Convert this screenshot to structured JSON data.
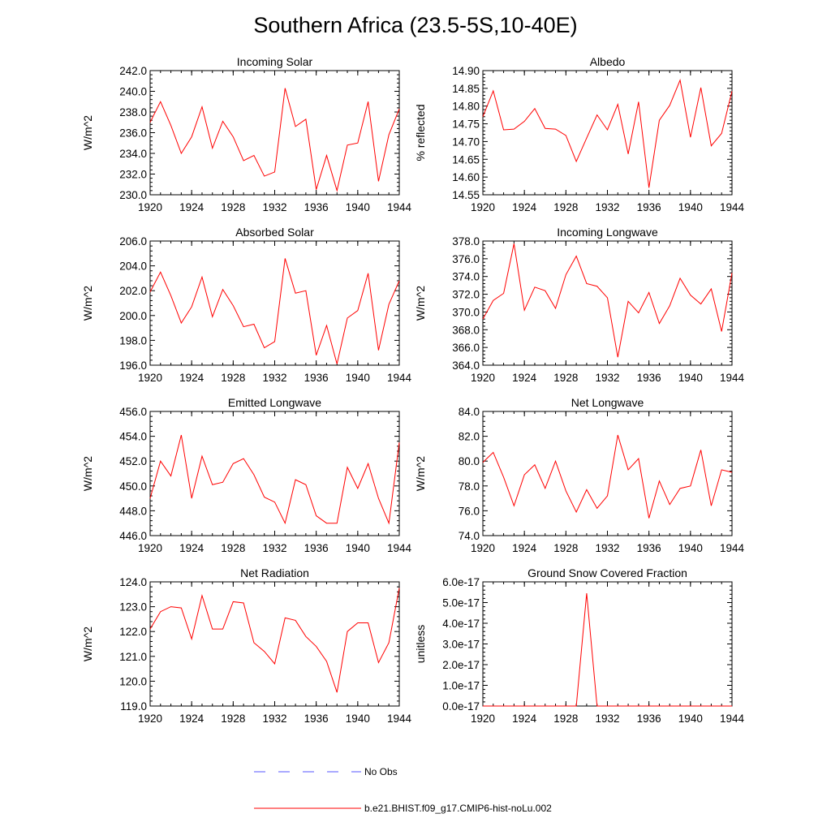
{
  "figure": {
    "title": "Southern Africa (23.5-5S,10-40E)"
  },
  "legend": {
    "entries": [
      {
        "label": "No Obs",
        "color": "#5555ff",
        "style": "dashed"
      },
      {
        "label": "b.e21.BHIST.f09_g17.CMIP6-hist-noLu.002",
        "color": "#ff0000",
        "style": "solid"
      }
    ]
  },
  "chart_data": [
    {
      "type": "line",
      "title": "Incoming Solar",
      "xlabel": "",
      "ylabel": "W/m^2",
      "xlim": [
        1920,
        1944
      ],
      "ylim": [
        230.0,
        242.0
      ],
      "xticks": [
        1920,
        1924,
        1928,
        1932,
        1936,
        1940,
        1944
      ],
      "yticks": [
        "230.0",
        "232.0",
        "234.0",
        "236.0",
        "238.0",
        "240.0",
        "242.0"
      ],
      "yticks_num": [
        230.0,
        232.0,
        234.0,
        236.0,
        238.0,
        240.0,
        242.0
      ],
      "x": [
        1920,
        1921,
        1922,
        1923,
        1924,
        1925,
        1926,
        1927,
        1928,
        1929,
        1930,
        1931,
        1932,
        1933,
        1934,
        1935,
        1936,
        1937,
        1938,
        1939,
        1940,
        1941,
        1942,
        1943,
        1944
      ],
      "series": [
        {
          "name": "b.e21.BHIST.f09_g17.CMIP6-hist-noLu.002",
          "color": "#ff0000",
          "values": [
            237.0,
            239.0,
            236.7,
            234.0,
            235.6,
            238.5,
            234.5,
            237.1,
            235.6,
            233.3,
            233.8,
            231.8,
            232.2,
            240.3,
            236.6,
            237.3,
            230.5,
            233.8,
            230.4,
            234.8,
            235.0,
            239.0,
            231.3,
            235.8,
            238.3
          ]
        }
      ]
    },
    {
      "type": "line",
      "title": "Albedo",
      "xlabel": "",
      "ylabel": "% reflected",
      "xlim": [
        1920,
        1944
      ],
      "ylim": [
        14.55,
        14.9
      ],
      "xticks": [
        1920,
        1924,
        1928,
        1932,
        1936,
        1940,
        1944
      ],
      "yticks": [
        "14.55",
        "14.60",
        "14.65",
        "14.70",
        "14.75",
        "14.80",
        "14.85",
        "14.90"
      ],
      "yticks_num": [
        14.55,
        14.6,
        14.65,
        14.7,
        14.75,
        14.8,
        14.85,
        14.9
      ],
      "x": [
        1920,
        1921,
        1922,
        1923,
        1924,
        1925,
        1926,
        1927,
        1928,
        1929,
        1930,
        1931,
        1932,
        1933,
        1934,
        1935,
        1936,
        1937,
        1938,
        1939,
        1940,
        1941,
        1942,
        1943,
        1944
      ],
      "series": [
        {
          "name": "b.e21.BHIST.f09_g17.CMIP6-hist-noLu.002",
          "color": "#ff0000",
          "values": [
            14.77,
            14.843,
            14.733,
            14.735,
            14.757,
            14.793,
            14.737,
            14.735,
            14.717,
            14.644,
            14.71,
            14.775,
            14.733,
            14.805,
            14.665,
            14.812,
            14.57,
            14.76,
            14.802,
            14.873,
            14.712,
            14.852,
            14.688,
            14.723,
            14.842
          ]
        }
      ]
    },
    {
      "type": "line",
      "title": "Absorbed Solar",
      "xlabel": "",
      "ylabel": "W/m^2",
      "xlim": [
        1920,
        1944
      ],
      "ylim": [
        196.0,
        206.0
      ],
      "xticks": [
        1920,
        1924,
        1928,
        1932,
        1936,
        1940,
        1944
      ],
      "yticks": [
        "196.0",
        "198.0",
        "200.0",
        "202.0",
        "204.0",
        "206.0"
      ],
      "yticks_num": [
        196.0,
        198.0,
        200.0,
        202.0,
        204.0,
        206.0
      ],
      "x": [
        1920,
        1921,
        1922,
        1923,
        1924,
        1925,
        1926,
        1927,
        1928,
        1929,
        1930,
        1931,
        1932,
        1933,
        1934,
        1935,
        1936,
        1937,
        1938,
        1939,
        1940,
        1941,
        1942,
        1943,
        1944
      ],
      "series": [
        {
          "name": "b.e21.BHIST.f09_g17.CMIP6-hist-noLu.002",
          "color": "#ff0000",
          "values": [
            201.9,
            203.5,
            201.6,
            199.4,
            200.7,
            203.1,
            199.9,
            202.1,
            200.8,
            199.1,
            199.3,
            197.4,
            197.9,
            204.6,
            201.8,
            202.0,
            196.8,
            199.2,
            196.1,
            199.8,
            200.4,
            203.4,
            197.2,
            200.9,
            202.8
          ]
        }
      ]
    },
    {
      "type": "line",
      "title": "Incoming Longwave",
      "xlabel": "",
      "ylabel": "W/m^2",
      "xlim": [
        1920,
        1944
      ],
      "ylim": [
        364.0,
        378.0
      ],
      "xticks": [
        1920,
        1924,
        1928,
        1932,
        1936,
        1940,
        1944
      ],
      "yticks": [
        "364.0",
        "366.0",
        "368.0",
        "370.0",
        "372.0",
        "374.0",
        "376.0",
        "378.0"
      ],
      "yticks_num": [
        364.0,
        366.0,
        368.0,
        370.0,
        372.0,
        374.0,
        376.0,
        378.0
      ],
      "x": [
        1920,
        1921,
        1922,
        1923,
        1924,
        1925,
        1926,
        1927,
        1928,
        1929,
        1930,
        1931,
        1932,
        1933,
        1934,
        1935,
        1936,
        1937,
        1938,
        1939,
        1940,
        1941,
        1942,
        1943,
        1944
      ],
      "series": [
        {
          "name": "b.e21.BHIST.f09_g17.CMIP6-hist-noLu.002",
          "color": "#ff0000",
          "values": [
            369.2,
            371.3,
            372.1,
            377.7,
            370.2,
            372.8,
            372.4,
            370.4,
            374.2,
            376.3,
            373.2,
            372.9,
            371.6,
            364.9,
            371.2,
            369.9,
            372.2,
            368.7,
            370.7,
            373.8,
            371.9,
            370.9,
            372.6,
            367.8,
            374.4
          ]
        }
      ]
    },
    {
      "type": "line",
      "title": "Emitted Longwave",
      "xlabel": "",
      "ylabel": "W/m^2",
      "xlim": [
        1920,
        1944
      ],
      "ylim": [
        446.0,
        456.0
      ],
      "xticks": [
        1920,
        1924,
        1928,
        1932,
        1936,
        1940,
        1944
      ],
      "yticks": [
        "446.0",
        "448.0",
        "450.0",
        "452.0",
        "454.0",
        "456.0"
      ],
      "yticks_num": [
        446.0,
        448.0,
        450.0,
        452.0,
        454.0,
        456.0
      ],
      "x": [
        1920,
        1921,
        1922,
        1923,
        1924,
        1925,
        1926,
        1927,
        1928,
        1929,
        1930,
        1931,
        1932,
        1933,
        1934,
        1935,
        1936,
        1937,
        1938,
        1939,
        1940,
        1941,
        1942,
        1943,
        1944
      ],
      "series": [
        {
          "name": "b.e21.BHIST.f09_g17.CMIP6-hist-noLu.002",
          "color": "#ff0000",
          "values": [
            449.0,
            452.0,
            450.8,
            454.1,
            449.0,
            452.4,
            450.1,
            450.3,
            451.8,
            452.2,
            450.9,
            449.1,
            448.7,
            447.0,
            450.5,
            450.1,
            447.6,
            447.0,
            447.0,
            451.5,
            449.8,
            451.8,
            449.0,
            447.0,
            453.5
          ]
        }
      ]
    },
    {
      "type": "line",
      "title": "Net Longwave",
      "xlabel": "",
      "ylabel": "W/m^2",
      "xlim": [
        1920,
        1944
      ],
      "ylim": [
        74.0,
        84.0
      ],
      "xticks": [
        1920,
        1924,
        1928,
        1932,
        1936,
        1940,
        1944
      ],
      "yticks": [
        "74.0",
        "76.0",
        "78.0",
        "80.0",
        "82.0",
        "84.0"
      ],
      "yticks_num": [
        74.0,
        76.0,
        78.0,
        80.0,
        82.0,
        84.0
      ],
      "x": [
        1920,
        1921,
        1922,
        1923,
        1924,
        1925,
        1926,
        1927,
        1928,
        1929,
        1930,
        1931,
        1932,
        1933,
        1934,
        1935,
        1936,
        1937,
        1938,
        1939,
        1940,
        1941,
        1942,
        1943,
        1944
      ],
      "series": [
        {
          "name": "b.e21.BHIST.f09_g17.CMIP6-hist-noLu.002",
          "color": "#ff0000",
          "values": [
            79.9,
            80.7,
            78.7,
            76.4,
            78.9,
            79.7,
            77.8,
            80.0,
            77.6,
            75.9,
            77.7,
            76.2,
            77.2,
            82.1,
            79.3,
            80.2,
            75.4,
            78.4,
            76.5,
            77.8,
            78.0,
            80.9,
            76.4,
            79.3,
            79.1
          ]
        }
      ]
    },
    {
      "type": "line",
      "title": "Net Radiation",
      "xlabel": "",
      "ylabel": "W/m^2",
      "xlim": [
        1920,
        1944
      ],
      "ylim": [
        119.0,
        124.0
      ],
      "xticks": [
        1920,
        1924,
        1928,
        1932,
        1936,
        1940,
        1944
      ],
      "yticks": [
        "119.0",
        "120.0",
        "121.0",
        "122.0",
        "123.0",
        "124.0"
      ],
      "yticks_num": [
        119.0,
        120.0,
        121.0,
        122.0,
        123.0,
        124.0
      ],
      "x": [
        1920,
        1921,
        1922,
        1923,
        1924,
        1925,
        1926,
        1927,
        1928,
        1929,
        1930,
        1931,
        1932,
        1933,
        1934,
        1935,
        1936,
        1937,
        1938,
        1939,
        1940,
        1941,
        1942,
        1943,
        1944
      ],
      "series": [
        {
          "name": "b.e21.BHIST.f09_g17.CMIP6-hist-noLu.002",
          "color": "#ff0000",
          "values": [
            122.1,
            122.8,
            123.0,
            122.95,
            121.7,
            123.45,
            122.1,
            122.1,
            123.2,
            123.15,
            121.55,
            121.2,
            120.7,
            122.55,
            122.45,
            121.8,
            121.4,
            120.8,
            119.55,
            122.0,
            122.35,
            122.35,
            120.75,
            121.55,
            123.75
          ]
        }
      ]
    },
    {
      "type": "line",
      "title": "Ground Snow Covered Fraction",
      "xlabel": "",
      "ylabel": "unitless",
      "xlim": [
        1920,
        1944
      ],
      "ylim": [
        0,
        6e-17
      ],
      "xticks": [
        1920,
        1924,
        1928,
        1932,
        1936,
        1940,
        1944
      ],
      "yticks": [
        "0.0e-17",
        "1.0e-17",
        "2.0e-17",
        "3.0e-17",
        "4.0e-17",
        "5.0e-17",
        "6.0e-17"
      ],
      "yticks_num": [
        0,
        1e-17,
        2e-17,
        3e-17,
        4e-17,
        5e-17,
        6e-17
      ],
      "x": [
        1920,
        1921,
        1922,
        1923,
        1924,
        1925,
        1926,
        1927,
        1928,
        1929,
        1930,
        1931,
        1932,
        1933,
        1934,
        1935,
        1936,
        1937,
        1938,
        1939,
        1940,
        1941,
        1942,
        1943,
        1944
      ],
      "series": [
        {
          "name": "b.e21.BHIST.f09_g17.CMIP6-hist-noLu.002",
          "color": "#ff0000",
          "values": [
            0,
            0,
            0,
            0,
            0,
            0,
            0,
            0,
            0,
            0,
            5.45e-17,
            0,
            0,
            0,
            0,
            0,
            0,
            0,
            0,
            0,
            0,
            0,
            0,
            0,
            0
          ]
        }
      ]
    }
  ]
}
